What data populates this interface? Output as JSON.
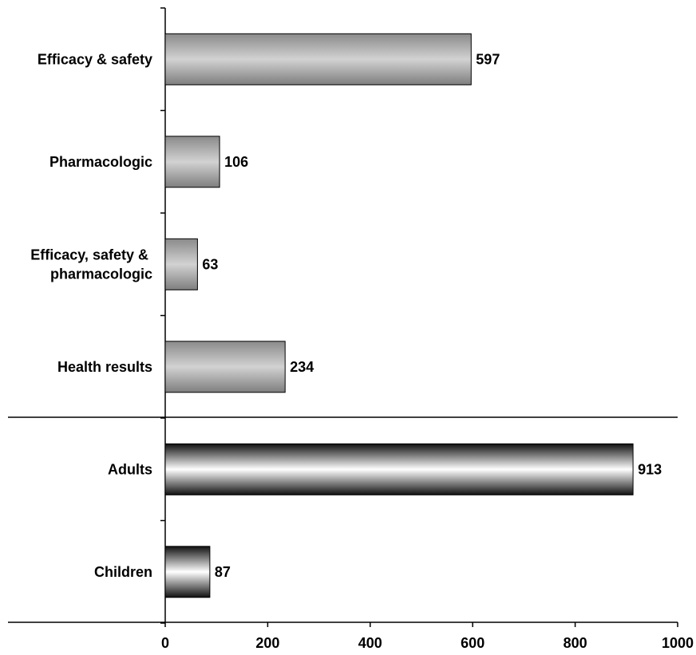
{
  "chart_data": {
    "type": "bar",
    "orientation": "horizontal",
    "title": "",
    "xlabel": "",
    "ylabel": "",
    "xlim": [
      0,
      1000
    ],
    "x_ticks": [
      "0",
      "200",
      "400",
      "600",
      "800",
      "1000"
    ],
    "grid": false,
    "legend": "none",
    "groups": [
      {
        "categories": [
          "Efficacy & safety",
          "Pharmacologic",
          "Efficacy, safety & pharmacologic",
          "Health results"
        ],
        "values": [
          597,
          106,
          63,
          234
        ],
        "fill": "gray-gradient"
      },
      {
        "categories": [
          "Adults",
          "Children"
        ],
        "values": [
          913,
          87
        ],
        "fill": "black-white-black-gradient"
      }
    ]
  },
  "labels": {
    "cat_0_lines": [
      "Efficacy & safety"
    ],
    "cat_1_lines": [
      "Pharmacologic"
    ],
    "cat_2_lines": [
      "Efficacy, safety &",
      "pharmacologic"
    ],
    "cat_3_lines": [
      "Health results"
    ],
    "cat_4_lines": [
      "Adults"
    ],
    "cat_5_lines": [
      "Children"
    ],
    "val_0": "597",
    "val_1": "106",
    "val_2": "63",
    "val_3": "234",
    "val_4": "913",
    "val_5": "87"
  },
  "colors": {
    "axis": "#000000",
    "bar_outline": "#000000",
    "gray_dark": "#8c8c8c",
    "gray_light": "#d4d4d4",
    "bw_dark": "#141414",
    "bw_light": "#ffffff"
  }
}
